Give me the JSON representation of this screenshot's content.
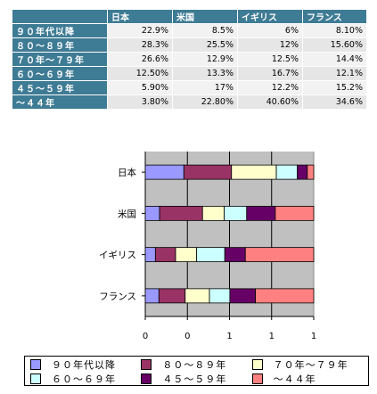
{
  "table": {
    "columns": [
      "日本",
      "米国",
      "イギリス",
      "フランス"
    ],
    "rows": [
      {
        "label": "９０年代以降",
        "values": [
          "22.9%",
          "8.5%",
          "6%",
          "8.10%"
        ]
      },
      {
        "label": "８０～８９年",
        "values": [
          "28.3%",
          "25.5%",
          "12%",
          "15.60%"
        ]
      },
      {
        "label": "７０年～７９年",
        "values": [
          "26.6%",
          "12.9%",
          "12.5%",
          "14.4%"
        ]
      },
      {
        "label": "６０～６９年",
        "values": [
          "12.50%",
          "13.3%",
          "16.7%",
          "12.1%"
        ]
      },
      {
        "label": "４５～５９年",
        "values": [
          "5.90%",
          "17%",
          "12.2%",
          "15.2%"
        ]
      },
      {
        "label": "～４４年",
        "values": [
          "3.80%",
          "22.80%",
          "40.60%",
          "34.6%"
        ]
      }
    ]
  },
  "chart_data": {
    "type": "bar",
    "orientation": "horizontal",
    "stacked": true,
    "categories": [
      "日本",
      "米国",
      "イギリス",
      "フランス"
    ],
    "series": [
      {
        "name": "９０年代以降",
        "values": [
          22.9,
          8.5,
          6,
          8.1
        ],
        "color": "#9999ff"
      },
      {
        "name": "８０～８９年",
        "values": [
          28.3,
          25.5,
          12,
          15.6
        ],
        "color": "#993366"
      },
      {
        "name": "７０年～７９年",
        "values": [
          26.6,
          12.9,
          12.5,
          14.4
        ],
        "color": "#ffffcc"
      },
      {
        "name": "６０～６９年",
        "values": [
          12.5,
          13.3,
          16.7,
          12.1
        ],
        "color": "#ccffff"
      },
      {
        "name": "４５～５９年",
        "values": [
          5.9,
          17,
          12.2,
          15.2
        ],
        "color": "#660066"
      },
      {
        "name": "～４４年",
        "values": [
          3.8,
          22.8,
          40.6,
          34.6
        ],
        "color": "#ff8080"
      }
    ],
    "xlim": [
      0,
      100
    ],
    "x_tick_labels": [
      "0",
      "0",
      "1",
      "1",
      "1"
    ],
    "plot_background": "#c0c0c0",
    "grid": true,
    "legend_position": "bottom"
  }
}
